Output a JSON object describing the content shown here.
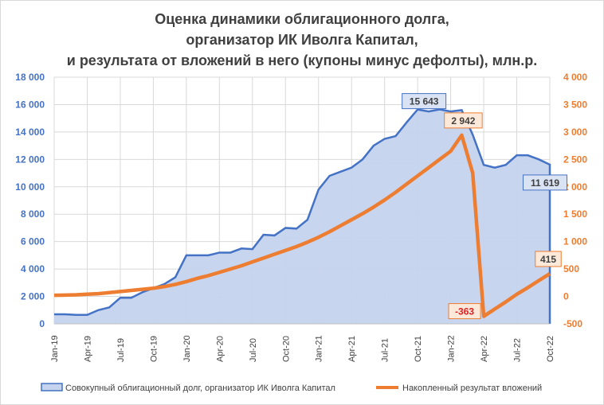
{
  "chart_data": {
    "type": "area+line",
    "title": [
      "Оценка динамики облигационного долга,",
      "организатор ИК Иволга Капитал,",
      "и результата от вложений в него (купоны минус дефолты), млн.р."
    ],
    "x": [
      "Jan-19",
      "Feb-19",
      "Mar-19",
      "Apr-19",
      "May-19",
      "Jun-19",
      "Jul-19",
      "Aug-19",
      "Sep-19",
      "Oct-19",
      "Nov-19",
      "Dec-19",
      "Jan-20",
      "Feb-20",
      "Mar-20",
      "Apr-20",
      "May-20",
      "Jun-20",
      "Jul-20",
      "Aug-20",
      "Sep-20",
      "Oct-20",
      "Nov-20",
      "Dec-20",
      "Jan-21",
      "Feb-21",
      "Mar-21",
      "Apr-21",
      "May-21",
      "Jun-21",
      "Jul-21",
      "Aug-21",
      "Sep-21",
      "Oct-21",
      "Nov-21",
      "Dec-21",
      "Jan-22",
      "Feb-22",
      "Mar-22",
      "Apr-22",
      "May-22",
      "Jun-22",
      "Jul-22",
      "Aug-22",
      "Sep-22",
      "Oct-22"
    ],
    "x_tick_labels": [
      "Jan-19",
      "Apr-19",
      "Jul-19",
      "Oct-19",
      "Jan-20",
      "Apr-20",
      "Jul-20",
      "Oct-20",
      "Jan-21",
      "Apr-21",
      "Jul-21",
      "Oct-21",
      "Jan-22",
      "Apr-22",
      "Jul-22",
      "Oct-22"
    ],
    "left_axis": {
      "range": [
        0,
        18000
      ],
      "ticks": [
        "0",
        "2 000",
        "4 000",
        "6 000",
        "8 000",
        "10 000",
        "12 000",
        "14 000",
        "16 000",
        "18 000"
      ],
      "color": "#4472c4"
    },
    "right_axis": {
      "range": [
        -500,
        4000
      ],
      "ticks": [
        "-500",
        "0",
        "500",
        "1 000",
        "1 500",
        "2 000",
        "2 500",
        "3 000",
        "3 500",
        "4 000"
      ],
      "color": "#ed7d31"
    },
    "grid": true,
    "legend_position": "bottom",
    "series": [
      {
        "name": "Совокупный облигационный долг, организатор ИК Иволга Капитал",
        "type": "area",
        "axis": "left",
        "color": "#4472c4",
        "fill": "#c5d3ee",
        "values": [
          700,
          700,
          650,
          650,
          1000,
          1200,
          1900,
          1900,
          2300,
          2600,
          2900,
          3400,
          5000,
          5000,
          5000,
          5200,
          5200,
          5500,
          5450,
          6500,
          6450,
          7000,
          6950,
          7600,
          9800,
          10800,
          11100,
          11400,
          12000,
          13000,
          13500,
          13700,
          14700,
          15643,
          15500,
          15650,
          15500,
          15600,
          13800,
          11600,
          11400,
          11600,
          12300,
          12300,
          12000,
          11619
        ]
      },
      {
        "name": "Накопленный результат вложений",
        "type": "line",
        "axis": "right",
        "color": "#ed7d31",
        "values": [
          20,
          25,
          30,
          40,
          50,
          70,
          90,
          110,
          130,
          150,
          180,
          220,
          270,
          330,
          380,
          440,
          500,
          560,
          630,
          700,
          770,
          840,
          910,
          990,
          1080,
          1180,
          1290,
          1400,
          1510,
          1630,
          1760,
          1900,
          2050,
          2200,
          2350,
          2500,
          2650,
          2942,
          2250,
          -363,
          -230,
          -100,
          40,
          160,
          290,
          415
        ]
      }
    ],
    "annotations": [
      {
        "series": 0,
        "index": 33,
        "text": "15 643"
      },
      {
        "series": 0,
        "index": 45,
        "text": "11 619"
      },
      {
        "series": 1,
        "index": 37,
        "text": "2 942"
      },
      {
        "series": 1,
        "index": 39,
        "text": "-363",
        "color": "#e02020"
      },
      {
        "series": 1,
        "index": 45,
        "text": "415"
      }
    ]
  }
}
